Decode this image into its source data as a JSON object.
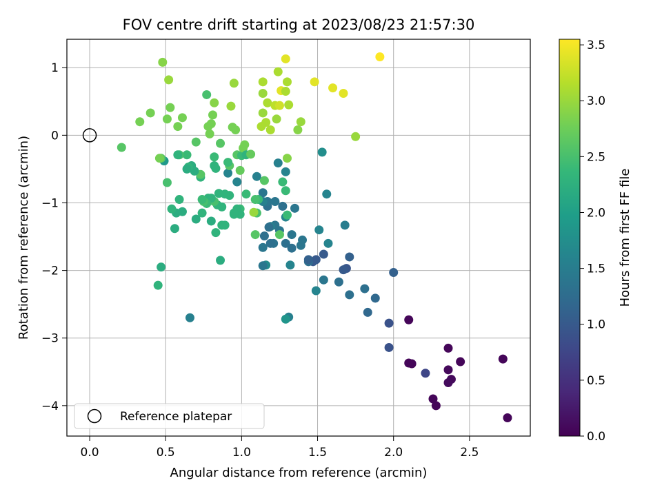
{
  "chart_data": {
    "type": "scatter",
    "title": "FOV centre drift starting at 2023/08/23 21:57:30",
    "xlabel": "Angular distance from reference (arcmin)",
    "ylabel": "Rotation from reference (arcmin)",
    "xlim": [
      -0.15,
      2.9
    ],
    "ylim": [
      -4.45,
      1.42
    ],
    "xticks": [
      0.0,
      0.5,
      1.0,
      1.5,
      2.0,
      2.5
    ],
    "xtick_labels": [
      "0.0",
      "0.5",
      "1.0",
      "1.5",
      "2.0",
      "2.5"
    ],
    "yticks": [
      1,
      0,
      -1,
      -2,
      -3,
      -4
    ],
    "ytick_labels": [
      "1",
      "0",
      "−1",
      "−2",
      "−3",
      "−4"
    ],
    "grid": true,
    "legend": {
      "placement": "lower-left",
      "entries": [
        "Reference platepar"
      ]
    },
    "reference_point": {
      "x": 0.0,
      "y": 0.0,
      "label": "Reference platepar"
    },
    "colorbar": {
      "label": "Hours from first FF file",
      "colormap": "viridis",
      "range": [
        0.0,
        3.55
      ],
      "ticks": [
        0.0,
        0.5,
        1.0,
        1.5,
        2.0,
        2.5,
        3.0,
        3.5
      ],
      "tick_labels": [
        "0.0",
        "0.5",
        "1.0",
        "1.5",
        "2.0",
        "2.5",
        "3.0",
        "3.5"
      ],
      "colors": [
        "#440154",
        "#482878",
        "#3e4989",
        "#31688e",
        "#26828e",
        "#1f9e89",
        "#35b779",
        "#6ece58",
        "#b5de2b",
        "#fde725"
      ]
    },
    "points": [
      [
        2.1,
        -3.37,
        0.05
      ],
      [
        2.12,
        -3.38,
        0.05
      ],
      [
        2.36,
        -3.15,
        0.05
      ],
      [
        2.44,
        -3.35,
        0.05
      ],
      [
        2.72,
        -3.31,
        0.05
      ],
      [
        2.36,
        -3.47,
        0.08
      ],
      [
        2.38,
        -3.61,
        0.08
      ],
      [
        2.36,
        -3.66,
        0.1
      ],
      [
        2.26,
        -3.9,
        0.05
      ],
      [
        2.28,
        -4.0,
        0.05
      ],
      [
        2.75,
        -4.18,
        0.05
      ],
      [
        2.1,
        -2.73,
        0.05
      ],
      [
        2.21,
        -3.52,
        0.75
      ],
      [
        1.97,
        -3.14,
        0.9
      ],
      [
        1.97,
        -2.78,
        0.9
      ],
      [
        2.0,
        -2.03,
        1.1
      ],
      [
        1.88,
        -2.41,
        1.2
      ],
      [
        1.83,
        -2.62,
        1.2
      ],
      [
        1.81,
        -2.27,
        1.3
      ],
      [
        1.71,
        -2.36,
        1.3
      ],
      [
        1.71,
        -1.8,
        1.1
      ],
      [
        1.69,
        -1.97,
        0.95
      ],
      [
        1.67,
        -1.99,
        1.0
      ],
      [
        1.64,
        -2.17,
        1.3
      ],
      [
        1.54,
        -2.14,
        1.4
      ],
      [
        1.54,
        -1.76,
        1.0
      ],
      [
        1.49,
        -1.84,
        1.0
      ],
      [
        1.47,
        -1.87,
        1.0
      ],
      [
        1.44,
        -1.87,
        1.3
      ],
      [
        1.44,
        -1.84,
        1.1
      ],
      [
        1.49,
        -2.3,
        1.6
      ],
      [
        1.57,
        -1.6,
        1.6
      ],
      [
        1.51,
        -1.4,
        1.6
      ],
      [
        1.56,
        -0.87,
        1.6
      ],
      [
        1.53,
        -0.25,
        1.75
      ],
      [
        1.68,
        -1.33,
        1.5
      ],
      [
        1.4,
        -1.55,
        1.4
      ],
      [
        1.39,
        -1.63,
        1.4
      ],
      [
        1.35,
        -1.08,
        1.4
      ],
      [
        1.33,
        -1.47,
        1.4
      ],
      [
        1.33,
        -1.67,
        1.3
      ],
      [
        1.32,
        -1.92,
        1.6
      ],
      [
        1.31,
        -2.69,
        1.55
      ],
      [
        1.29,
        -2.72,
        1.85
      ],
      [
        1.29,
        -1.6,
        1.3
      ],
      [
        1.29,
        -1.21,
        1.6
      ],
      [
        1.27,
        -1.05,
        1.3
      ],
      [
        1.25,
        -1.41,
        1.4
      ],
      [
        1.24,
        -0.41,
        1.55
      ],
      [
        1.22,
        -1.33,
        1.4
      ],
      [
        1.22,
        -0.98,
        1.4
      ],
      [
        1.21,
        -1.6,
        1.35
      ],
      [
        1.19,
        -1.35,
        1.55
      ],
      [
        1.19,
        -1.6,
        1.3
      ],
      [
        1.18,
        -1.36,
        1.3
      ],
      [
        1.17,
        -1.05,
        1.3
      ],
      [
        1.17,
        -0.98,
        1.4
      ],
      [
        1.16,
        -1.92,
        1.7
      ],
      [
        1.15,
        -1.49,
        1.3
      ],
      [
        1.14,
        -1.93,
        1.4
      ],
      [
        1.14,
        -1.66,
        1.4
      ],
      [
        1.14,
        -0.85,
        1.4
      ],
      [
        1.14,
        -0.98,
        1.55
      ],
      [
        1.1,
        -0.61,
        1.55
      ],
      [
        1.29,
        -0.54,
        1.6
      ],
      [
        1.3,
        -0.34,
        2.9
      ],
      [
        1.27,
        -0.69,
        2.4
      ],
      [
        1.29,
        -0.82,
        2.4
      ],
      [
        1.3,
        -1.18,
        2.4
      ],
      [
        1.25,
        -1.47,
        2.6
      ],
      [
        1.09,
        -1.47,
        2.6
      ],
      [
        1.1,
        -1.15,
        2.5
      ],
      [
        1.08,
        -1.14,
        3.0
      ],
      [
        1.15,
        -0.67,
        2.6
      ],
      [
        1.11,
        -0.95,
        2.4
      ],
      [
        1.09,
        -0.95,
        2.5
      ],
      [
        1.03,
        -0.87,
        2.4
      ],
      [
        0.99,
        -1.09,
        2.4
      ],
      [
        0.99,
        -1.17,
        2.3
      ],
      [
        0.97,
        -0.69,
        1.6
      ],
      [
        0.97,
        -1.09,
        2.3
      ],
      [
        0.95,
        -1.17,
        2.3
      ],
      [
        0.95,
        -1.15,
        2.3
      ],
      [
        0.92,
        -0.89,
        2.3
      ],
      [
        0.91,
        -0.56,
        1.6
      ],
      [
        0.92,
        -0.45,
        2.6
      ],
      [
        0.91,
        -0.4,
        2.4
      ],
      [
        0.89,
        -0.87,
        2.3
      ],
      [
        0.89,
        -1.33,
        2.3
      ],
      [
        0.87,
        -1.33,
        2.3
      ],
      [
        0.87,
        -1.06,
        2.3
      ],
      [
        0.86,
        -0.12,
        2.6
      ],
      [
        0.85,
        -0.86,
        2.3
      ],
      [
        0.86,
        -1.85,
        2.2
      ],
      [
        0.84,
        -1.03,
        2.3
      ],
      [
        0.83,
        -1.44,
        2.3
      ],
      [
        0.82,
        -0.45,
        2.3
      ],
      [
        0.83,
        -0.49,
        2.3
      ],
      [
        0.82,
        -0.32,
        2.4
      ],
      [
        0.82,
        -0.98,
        2.5
      ],
      [
        0.8,
        -0.93,
        2.3
      ],
      [
        0.8,
        -1.27,
        2.2
      ],
      [
        0.78,
        -0.93,
        2.3
      ],
      [
        0.77,
        -1.01,
        2.4
      ],
      [
        0.75,
        -0.98,
        2.5
      ],
      [
        0.74,
        -1.15,
        2.3
      ],
      [
        0.74,
        -0.95,
        2.4
      ],
      [
        0.73,
        -0.62,
        2.3
      ],
      [
        0.73,
        -0.58,
        2.6
      ],
      [
        0.7,
        -0.1,
        2.6
      ],
      [
        0.7,
        -1.24,
        2.2
      ],
      [
        0.69,
        -0.53,
        2.2
      ],
      [
        0.67,
        -0.45,
        2.2
      ],
      [
        0.65,
        -0.47,
        2.3
      ],
      [
        0.64,
        -0.5,
        2.2
      ],
      [
        0.64,
        -0.29,
        2.4
      ],
      [
        0.61,
        -1.13,
        2.2
      ],
      [
        0.59,
        -0.95,
        2.3
      ],
      [
        0.59,
        -0.29,
        2.5
      ],
      [
        0.58,
        -0.29,
        2.3
      ],
      [
        0.57,
        -1.15,
        2.2
      ],
      [
        0.56,
        -1.38,
        2.2
      ],
      [
        0.54,
        -1.09,
        2.3
      ],
      [
        0.66,
        -2.7,
        1.55
      ],
      [
        0.47,
        -1.95,
        2.2
      ],
      [
        0.45,
        -2.22,
        2.3
      ],
      [
        0.49,
        -0.38,
        1.9
      ],
      [
        0.47,
        -0.34,
        2.6
      ],
      [
        0.46,
        -0.34,
        2.8
      ],
      [
        0.51,
        -0.7,
        2.5
      ],
      [
        0.21,
        -0.18,
        2.6
      ],
      [
        0.33,
        0.2,
        2.8
      ],
      [
        0.4,
        0.33,
        2.8
      ],
      [
        0.51,
        0.24,
        2.8
      ],
      [
        0.53,
        0.41,
        2.8
      ],
      [
        0.58,
        0.13,
        2.8
      ],
      [
        0.61,
        0.26,
        2.8
      ],
      [
        0.48,
        1.08,
        2.9
      ],
      [
        0.52,
        0.82,
        3.0
      ],
      [
        0.77,
        0.6,
        2.5
      ],
      [
        0.78,
        0.13,
        2.8
      ],
      [
        0.79,
        0.02,
        2.8
      ],
      [
        0.8,
        0.17,
        2.8
      ],
      [
        0.81,
        0.3,
        2.8
      ],
      [
        0.82,
        0.48,
        2.9
      ],
      [
        0.93,
        0.43,
        3.0
      ],
      [
        0.95,
        0.77,
        3.0
      ],
      [
        0.94,
        0.12,
        2.8
      ],
      [
        0.96,
        0.08,
        2.8
      ],
      [
        0.97,
        -0.29,
        2.6
      ],
      [
        0.99,
        -0.52,
        2.7
      ],
      [
        1.0,
        -0.3,
        2.4
      ],
      [
        1.01,
        -0.19,
        2.8
      ],
      [
        1.02,
        -0.14,
        2.8
      ],
      [
        1.03,
        -0.29,
        2.3
      ],
      [
        1.06,
        -0.28,
        2.7
      ],
      [
        1.13,
        0.13,
        3.1
      ],
      [
        1.14,
        0.33,
        3.0
      ],
      [
        1.14,
        0.62,
        3.0
      ],
      [
        1.14,
        0.79,
        3.1
      ],
      [
        1.16,
        0.19,
        3.1
      ],
      [
        1.17,
        0.48,
        3.1
      ],
      [
        1.19,
        0.08,
        3.1
      ],
      [
        1.22,
        0.44,
        3.2
      ],
      [
        1.23,
        0.24,
        3.0
      ],
      [
        1.25,
        0.44,
        3.3
      ],
      [
        1.26,
        0.66,
        3.4
      ],
      [
        1.24,
        0.94,
        3.1
      ],
      [
        1.29,
        0.65,
        3.1
      ],
      [
        1.3,
        0.79,
        3.1
      ],
      [
        1.31,
        0.45,
        3.1
      ],
      [
        1.29,
        1.13,
        3.4
      ],
      [
        1.37,
        0.08,
        2.9
      ],
      [
        1.39,
        0.2,
        3.0
      ],
      [
        1.48,
        0.79,
        3.4
      ],
      [
        1.6,
        0.7,
        3.4
      ],
      [
        1.67,
        0.62,
        3.4
      ],
      [
        1.75,
        -0.02,
        3.0
      ],
      [
        1.91,
        1.16,
        3.55
      ]
    ]
  }
}
